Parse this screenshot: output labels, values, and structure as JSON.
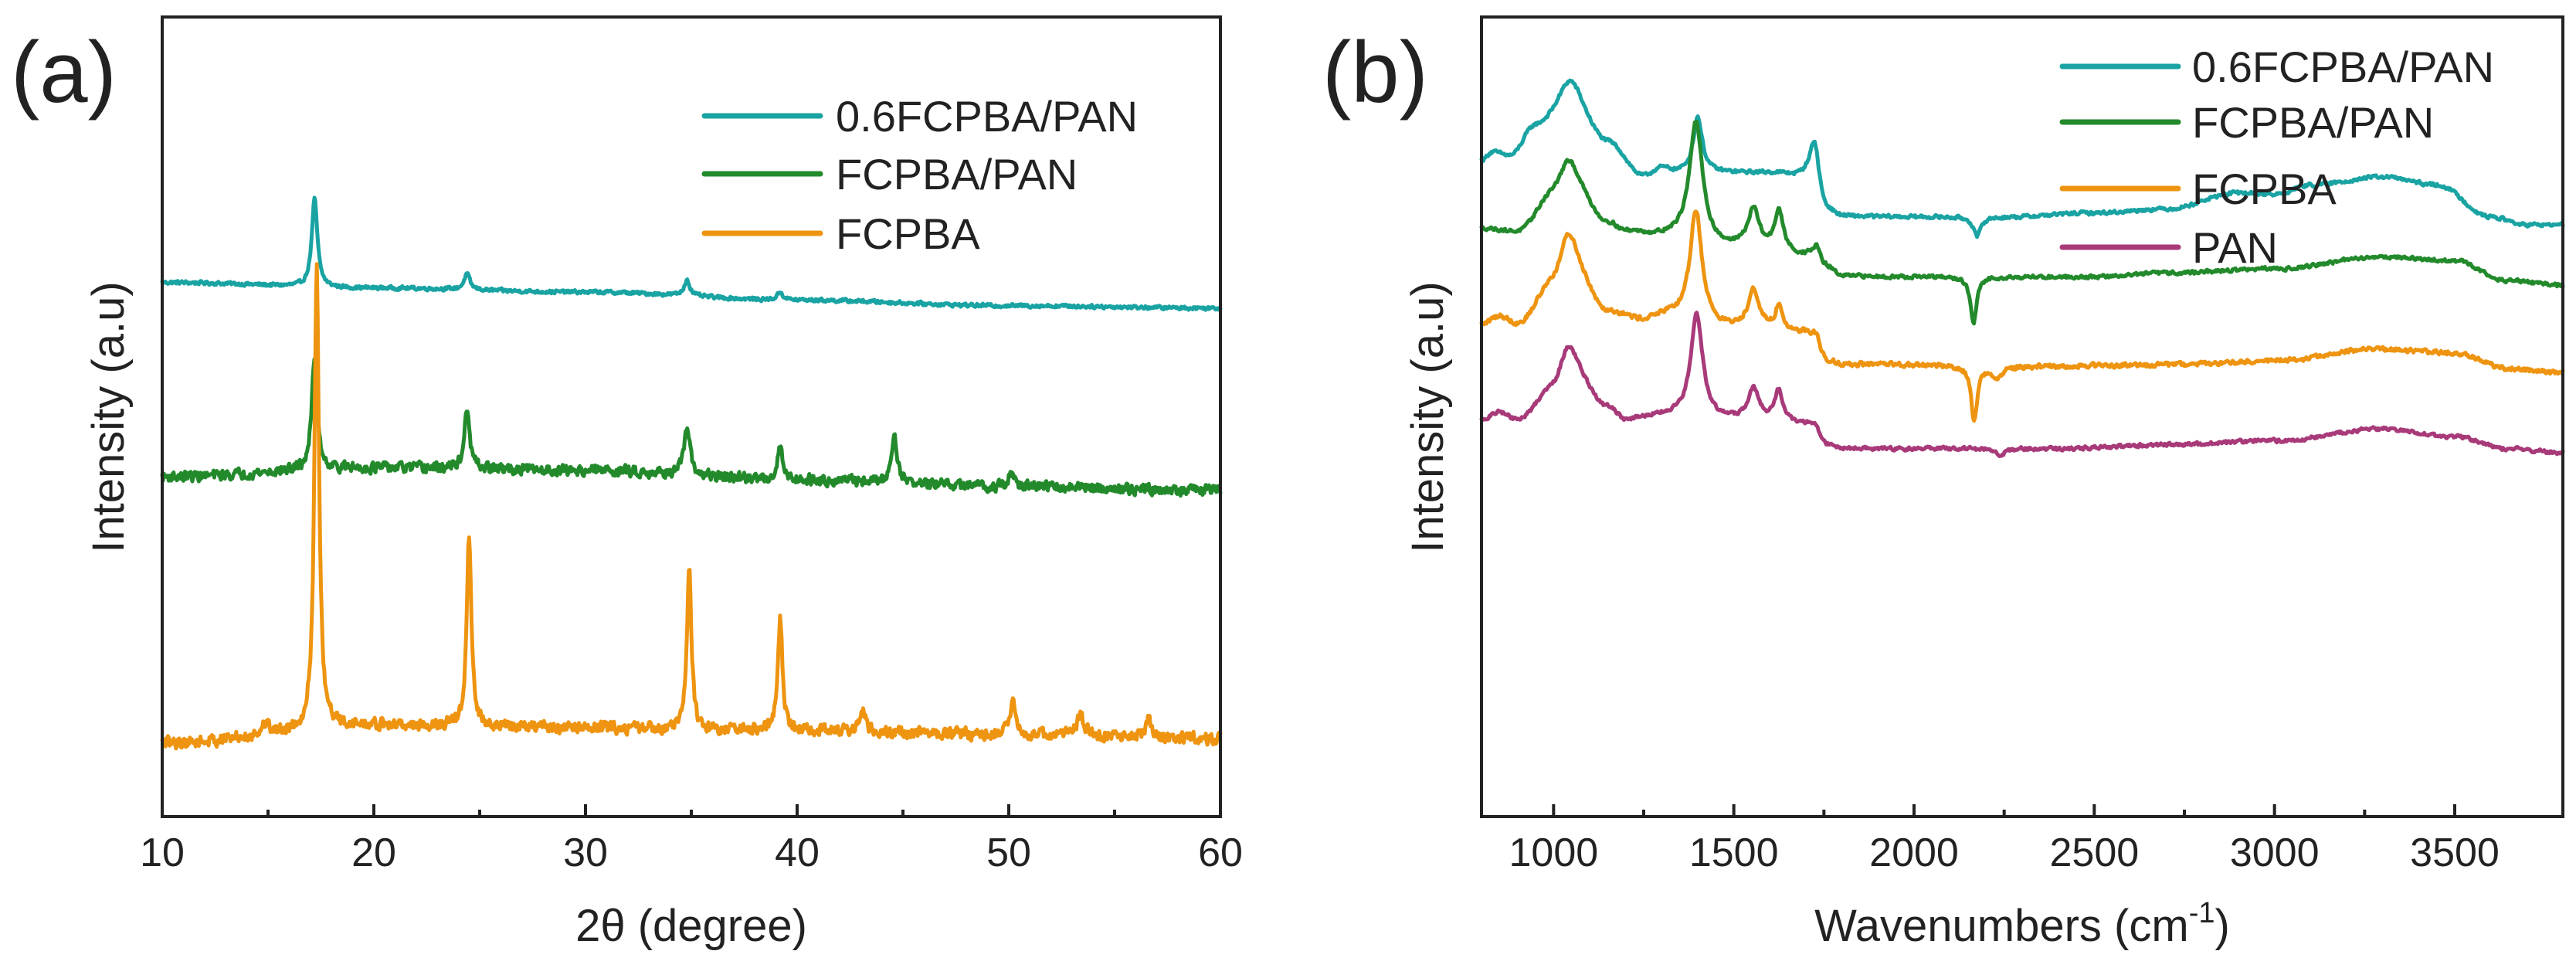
{
  "chart_data": [
    {
      "panel": "(a)",
      "type": "line",
      "xlabel": "2θ (degree)",
      "ylabel": "Intensity (a.u)",
      "xlim": [
        10,
        60
      ],
      "ylim": [
        0,
        100
      ],
      "x_ticks": [
        10,
        20,
        30,
        40,
        50,
        60
      ],
      "y_ticks_shown": false,
      "legend_position": "top-right",
      "series": [
        {
          "name": "0.6FCPBA/PAN",
          "color": "#1aa3a3",
          "baseline": [
            [
              10,
              66.8
            ],
            [
              20,
              66.1
            ],
            [
              30,
              65.6
            ],
            [
              40,
              64.6
            ],
            [
              50,
              63.9
            ],
            [
              60,
              63.6
            ]
          ],
          "noise": 0.3,
          "peaks": [
            [
              17.2,
              11,
              0.16
            ],
            [
              24.4,
              2,
              0.16
            ],
            [
              34.8,
              2,
              0.16
            ],
            [
              39.2,
              1,
              0.16
            ]
          ]
        },
        {
          "name": "FCPBA/PAN",
          "color": "#238a2c",
          "baseline": [
            [
              10,
              42.5
            ],
            [
              20,
              43.6
            ],
            [
              30,
              43.3
            ],
            [
              40,
              42.1
            ],
            [
              50,
              41.3
            ],
            [
              60,
              40.8
            ]
          ],
          "noise": 0.9,
          "peaks": [
            [
              17.2,
              14,
              0.16
            ],
            [
              24.4,
              7,
              0.16
            ],
            [
              34.8,
              6,
              0.16
            ],
            [
              39.2,
              4,
              0.16
            ],
            [
              44.6,
              6,
              0.16
            ],
            [
              50.1,
              1.5,
              0.16
            ]
          ]
        },
        {
          "name": "FCPBA",
          "color": "#ee9410",
          "baseline": [
            [
              10,
              9.2
            ],
            [
              20,
              11.4
            ],
            [
              30,
              11.1
            ],
            [
              40,
              10.7
            ],
            [
              50,
              10.3
            ],
            [
              60,
              9.7
            ]
          ],
          "noise": 1.0,
          "peaks": [
            [
              14.9,
              1.5,
              0.18
            ],
            [
              17.3,
              58,
              0.13
            ],
            [
              24.5,
              24,
              0.13
            ],
            [
              34.9,
              20,
              0.13
            ],
            [
              39.2,
              14,
              0.13
            ],
            [
              43.1,
              2.5,
              0.16
            ],
            [
              50.2,
              4,
              0.16
            ],
            [
              53.4,
              2.5,
              0.2
            ],
            [
              56.6,
              2.5,
              0.16
            ]
          ]
        }
      ]
    },
    {
      "panel": "(b)",
      "type": "line",
      "xlabel": "Wavenumbers (cm",
      "xlabel_sup": "-1",
      "xlabel_end": ")",
      "ylabel": "Intensity (a.u)",
      "xlim": [
        800,
        3800
      ],
      "ylim": [
        0,
        100
      ],
      "x_ticks": [
        1000,
        1500,
        2000,
        2500,
        3000,
        3500
      ],
      "y_ticks_shown": false,
      "legend_position": "top-right",
      "series": [
        {
          "name": "0.6FCPBA/PAN",
          "color": "#1aa3a3",
          "baseline": [
            [
              800,
              82
            ],
            [
              830,
              83
            ],
            [
              880,
              82.5
            ],
            [
              950,
              86
            ],
            [
              1050,
              88
            ],
            [
              1150,
              84
            ],
            [
              1250,
              80
            ],
            [
              1300,
              81
            ],
            [
              1350,
              80.5
            ],
            [
              1500,
              80.5
            ],
            [
              1600,
              80.5
            ],
            [
              1700,
              80
            ],
            [
              1760,
              75.5
            ],
            [
              1800,
              75
            ],
            [
              2000,
              75
            ],
            [
              2150,
              75
            ],
            [
              2250,
              75
            ],
            [
              2500,
              75.5
            ],
            [
              2700,
              76
            ],
            [
              2900,
              78
            ],
            [
              3000,
              77.8
            ],
            [
              3100,
              79
            ],
            [
              3300,
              80
            ],
            [
              3450,
              79
            ],
            [
              3600,
              75
            ],
            [
              3700,
              74
            ],
            [
              3800,
              74
            ]
          ],
          "noise": 0.3,
          "peaks": [
            [
              1045,
              4,
              40
            ],
            [
              1400,
              7,
              15
            ],
            [
              1725,
              6,
              15
            ],
            [
              2175,
              -2.5,
              12
            ]
          ]
        },
        {
          "name": "FCPBA/PAN",
          "color": "#238a2c",
          "baseline": [
            [
              800,
              73.5
            ],
            [
              900,
              73
            ],
            [
              1000,
              77
            ],
            [
              1050,
              78
            ],
            [
              1150,
              74
            ],
            [
              1200,
              73
            ],
            [
              1300,
              72.5
            ],
            [
              1500,
              71
            ],
            [
              1600,
              70.5
            ],
            [
              1700,
              70
            ],
            [
              1760,
              68.5
            ],
            [
              1800,
              67.5
            ],
            [
              2000,
              67.5
            ],
            [
              2300,
              67.5
            ],
            [
              2500,
              67.5
            ],
            [
              2700,
              68
            ],
            [
              3000,
              68.5
            ],
            [
              3300,
              70
            ],
            [
              3500,
              69.5
            ],
            [
              3650,
              67
            ],
            [
              3800,
              66.5
            ]
          ],
          "noise": 0.3,
          "peaks": [
            [
              1040,
              4,
              35
            ],
            [
              1395,
              15,
              22
            ],
            [
              1555,
              5,
              20
            ],
            [
              1625,
              5,
              15
            ],
            [
              1730,
              2,
              12
            ],
            [
              2165,
              -6,
              10
            ]
          ]
        },
        {
          "name": "FCPBA",
          "color": "#ee9410",
          "baseline": [
            [
              800,
              61.5
            ],
            [
              850,
              62.5
            ],
            [
              900,
              61.5
            ],
            [
              1000,
              66
            ],
            [
              1050,
              68
            ],
            [
              1150,
              63
            ],
            [
              1250,
              62
            ],
            [
              1300,
              62.5
            ],
            [
              1500,
              61
            ],
            [
              1700,
              60.5
            ],
            [
              1760,
              57
            ],
            [
              1800,
              56.5
            ],
            [
              2000,
              56.5
            ],
            [
              2300,
              56.3
            ],
            [
              2700,
              56.5
            ],
            [
              3000,
              57
            ],
            [
              3300,
              58.5
            ],
            [
              3500,
              58
            ],
            [
              3650,
              56
            ],
            [
              3800,
              55.5
            ]
          ],
          "noise": 0.4,
          "peaks": [
            [
              1040,
              5,
              30
            ],
            [
              1395,
              14,
              20
            ],
            [
              1555,
              5,
              18
            ],
            [
              1625,
              3,
              12
            ],
            [
              1730,
              1.5,
              10
            ],
            [
              2167,
              -7,
              10
            ],
            [
              2230,
              -1.5,
              15
            ]
          ]
        },
        {
          "name": "PAN",
          "color": "#a83a7a",
          "baseline": [
            [
              800,
              49.5
            ],
            [
              850,
              50.5
            ],
            [
              900,
              49.5
            ],
            [
              1000,
              53
            ],
            [
              1050,
              55
            ],
            [
              1150,
              51
            ],
            [
              1200,
              49.5
            ],
            [
              1300,
              50
            ],
            [
              1500,
              49.5
            ],
            [
              1700,
              49
            ],
            [
              1760,
              46.5
            ],
            [
              1800,
              46
            ],
            [
              2000,
              46
            ],
            [
              2400,
              46
            ],
            [
              2700,
              46.5
            ],
            [
              3000,
              47
            ],
            [
              3300,
              48.5
            ],
            [
              3500,
              47.5
            ],
            [
              3650,
              46
            ],
            [
              3800,
              45.5
            ]
          ],
          "noise": 0.3,
          "peaks": [
            [
              1040,
              4,
              30
            ],
            [
              1397,
              13,
              20
            ],
            [
              1555,
              4,
              18
            ],
            [
              1625,
              4,
              14
            ],
            [
              1730,
              1,
              10
            ],
            [
              2240,
              -1,
              12
            ]
          ]
        }
      ]
    }
  ]
}
